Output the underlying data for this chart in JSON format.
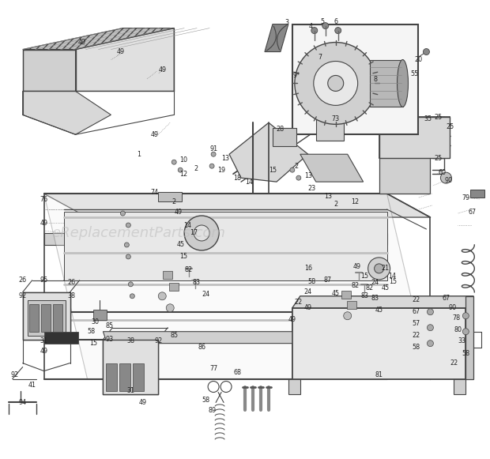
{
  "bg_color": "#ffffff",
  "line_color": "#444444",
  "text_color": "#222222",
  "watermark": "eReplacementParts.com",
  "watermark_color": "#bbbbbb",
  "figsize": [
    6.2,
    5.81
  ],
  "dpi": 100
}
